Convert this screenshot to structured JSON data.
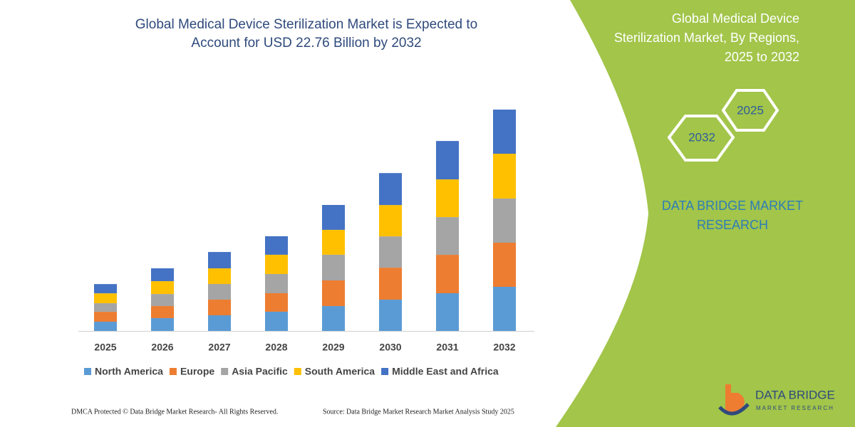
{
  "chart_data": {
    "type": "bar",
    "stacked": true,
    "title": [
      "Global Medical Device Sterilization Market is Expected to",
      "Account for USD 22.76 Billion by 2032"
    ],
    "categories": [
      "2025",
      "2026",
      "2027",
      "2028",
      "2029",
      "2030",
      "2031",
      "2032"
    ],
    "series": [
      {
        "name": "North America",
        "color": "#5b9bd5",
        "values": [
          0.95,
          1.32,
          1.61,
          1.98,
          2.56,
          3.22,
          3.88,
          4.54
        ]
      },
      {
        "name": "Europe",
        "color": "#ed7d31",
        "values": [
          1.02,
          1.24,
          1.61,
          1.9,
          2.64,
          3.29,
          3.95,
          4.54
        ]
      },
      {
        "name": "Asia Pacific",
        "color": "#a5a5a5",
        "values": [
          0.88,
          1.24,
          1.61,
          1.98,
          2.64,
          3.22,
          3.88,
          4.54
        ]
      },
      {
        "name": "South America",
        "color": "#ffc000",
        "values": [
          1.02,
          1.32,
          1.61,
          1.98,
          2.56,
          3.22,
          3.88,
          4.61
        ]
      },
      {
        "name": "Middle East and Africa",
        "color": "#4472c4",
        "values": [
          0.95,
          1.32,
          1.68,
          1.9,
          2.56,
          3.29,
          3.95,
          4.54
        ]
      }
    ]
  },
  "side_panel": {
    "title": [
      "Global Medical Device",
      "Sterilization Market, By Regions,",
      "2025 to 2032"
    ],
    "hexagons": [
      "2025",
      "2032"
    ],
    "brand": [
      "DATA BRIDGE MARKET",
      "RESEARCH"
    ]
  },
  "logo": {
    "name": "DATA BRIDGE",
    "tagline": "MARKET RESEARCH"
  },
  "footer": {
    "left": "DMCA Protected © Data Bridge Market Research- All Rights Reserved.",
    "right": "Source: Data Bridge Market Research Market Analysis Study 2025"
  }
}
